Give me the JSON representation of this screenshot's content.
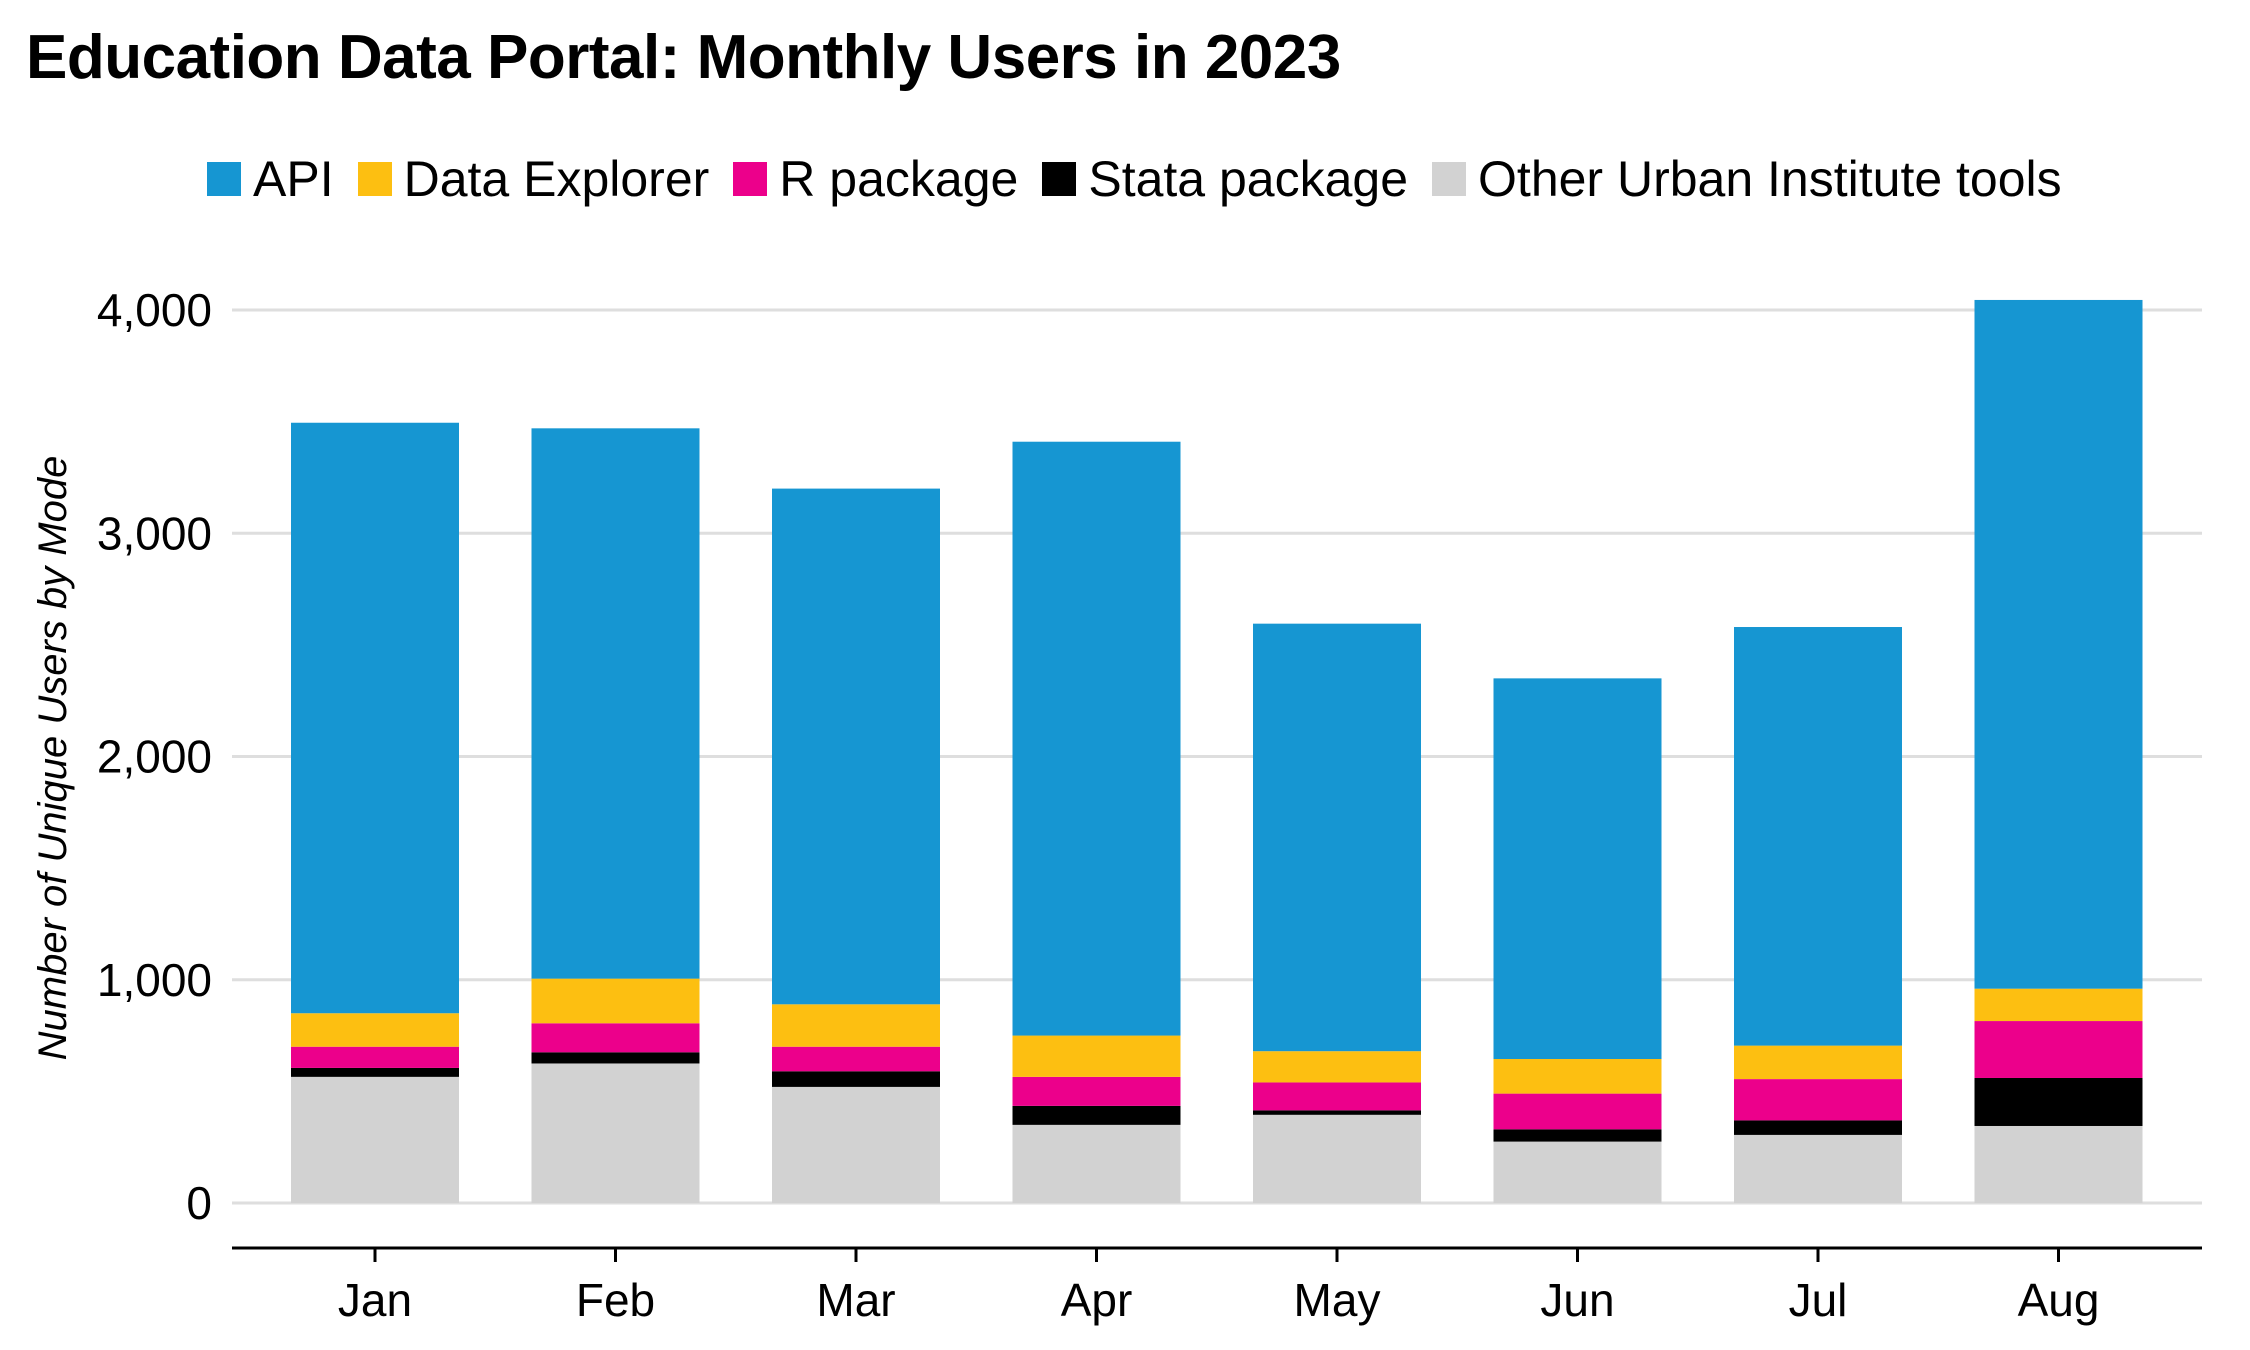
{
  "chart_data": {
    "type": "bar",
    "stacked": true,
    "title": "Education Data Portal: Monthly Users in 2023",
    "xlabel": "",
    "ylabel": "Number of Unique Users by Mode",
    "categories": [
      "Jan",
      "Feb",
      "Mar",
      "Apr",
      "May",
      "Jun",
      "Jul",
      "Aug"
    ],
    "ylim": [
      0,
      4000
    ],
    "yticks": [
      0,
      1000,
      2000,
      3000,
      4000
    ],
    "ytick_labels": [
      "0",
      "1,000",
      "2,000",
      "3,000",
      "4,000"
    ],
    "grid": true,
    "legend_position": "top",
    "series": [
      {
        "name": "Other Urban Institute tools",
        "color": "#d2d2d2",
        "values": [
          565,
          625,
          520,
          350,
          395,
          275,
          305,
          345
        ]
      },
      {
        "name": "Stata package",
        "color": "#000000",
        "values": [
          40,
          50,
          70,
          85,
          20,
          55,
          65,
          215
        ]
      },
      {
        "name": "R package",
        "color": "#ec008b",
        "values": [
          95,
          130,
          110,
          130,
          125,
          160,
          185,
          255
        ]
      },
      {
        "name": "Data Explorer",
        "color": "#fdbf11",
        "values": [
          150,
          200,
          190,
          185,
          140,
          155,
          150,
          145
        ]
      },
      {
        "name": "API",
        "color": "#1696d2",
        "values": [
          2645,
          2465,
          2310,
          2660,
          1915,
          1705,
          1875,
          3085
        ]
      }
    ],
    "legend_order": [
      "API",
      "Data Explorer",
      "R package",
      "Stata package",
      "Other Urban Institute tools"
    ]
  }
}
